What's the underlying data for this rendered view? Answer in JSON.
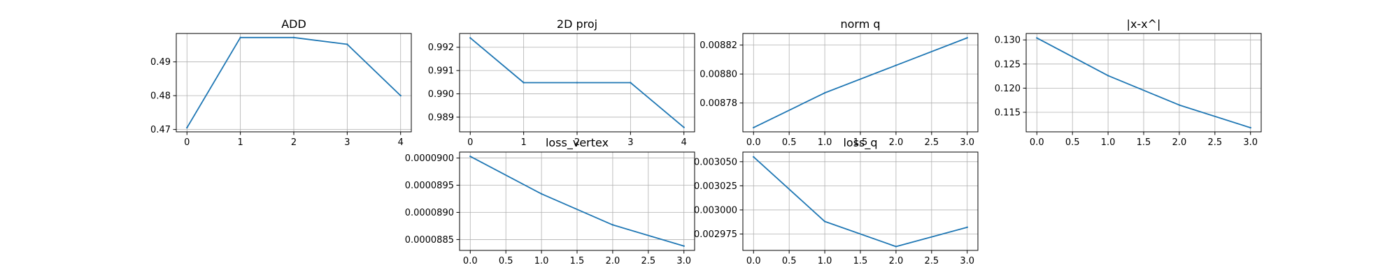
{
  "line_color": "#1f77b4",
  "grid_color": "#b0b0b0",
  "chart_data": [
    {
      "id": "add",
      "type": "line",
      "title": "ADD",
      "x": [
        0,
        1,
        2,
        3,
        4
      ],
      "y": [
        0.4705,
        0.4972,
        0.4972,
        0.4952,
        0.48
      ],
      "xlim": [
        -0.2,
        4.2
      ],
      "ylim": [
        0.4693,
        0.4984
      ],
      "xticks": [
        0,
        1,
        2,
        3,
        4
      ],
      "xtick_labels": [
        "0",
        "1",
        "2",
        "3",
        "4"
      ],
      "yticks": [
        0.47,
        0.48,
        0.49
      ],
      "ytick_labels": [
        "0.47",
        "0.48",
        "0.49"
      ],
      "grid": true
    },
    {
      "id": "proj2d",
      "type": "line",
      "title": "2D proj",
      "x": [
        0,
        1,
        2,
        3,
        4
      ],
      "y": [
        0.9924,
        0.99048,
        0.99048,
        0.99048,
        0.98856
      ],
      "xlim": [
        -0.2,
        4.2
      ],
      "ylim": [
        0.98837,
        0.99259
      ],
      "xticks": [
        0,
        1,
        2,
        3,
        4
      ],
      "xtick_labels": [
        "0",
        "1",
        "2",
        "3",
        "4"
      ],
      "yticks": [
        0.989,
        0.99,
        0.991,
        0.992
      ],
      "ytick_labels": [
        "0.989",
        "0.990",
        "0.991",
        "0.992"
      ],
      "grid": true
    },
    {
      "id": "normq",
      "type": "line",
      "title": "norm q",
      "x": [
        0,
        1,
        2,
        3
      ],
      "y": [
        0.008763,
        0.008787,
        0.008806,
        0.008825
      ],
      "xlim": [
        -0.15,
        3.15
      ],
      "ylim": [
        0.0087601,
        0.008828
      ],
      "xticks": [
        0.0,
        0.5,
        1.0,
        1.5,
        2.0,
        2.5,
        3.0
      ],
      "xtick_labels": [
        "0.0",
        "0.5",
        "1.0",
        "1.5",
        "2.0",
        "2.5",
        "3.0"
      ],
      "yticks": [
        0.00878,
        0.0088,
        0.00882
      ],
      "ytick_labels": [
        "0.00878",
        "0.00880",
        "0.00882"
      ],
      "grid": true
    },
    {
      "id": "absdiff",
      "type": "line",
      "title": "|x-x^|",
      "x": [
        0,
        1,
        2,
        3
      ],
      "y": [
        0.1304,
        0.1226,
        0.1165,
        0.1118
      ],
      "xlim": [
        -0.15,
        3.15
      ],
      "ylim": [
        0.11095,
        0.13133
      ],
      "xticks": [
        0.0,
        0.5,
        1.0,
        1.5,
        2.0,
        2.5,
        3.0
      ],
      "xtick_labels": [
        "0.0",
        "0.5",
        "1.0",
        "1.5",
        "2.0",
        "2.5",
        "3.0"
      ],
      "yticks": [
        0.115,
        0.12,
        0.125,
        0.13
      ],
      "ytick_labels": [
        "0.115",
        "0.120",
        "0.125",
        "0.130"
      ],
      "grid": true
    },
    {
      "id": "lossvertex",
      "type": "line",
      "title": "loss_vertex",
      "x": [
        0,
        1,
        2,
        3
      ],
      "y": [
        9.003e-05,
        8.934e-05,
        8.877e-05,
        8.838e-05
      ],
      "xlim": [
        -0.15,
        3.15
      ],
      "ylim": [
        8.83e-05,
        9.011e-05
      ],
      "xticks": [
        0.0,
        0.5,
        1.0,
        1.5,
        2.0,
        2.5,
        3.0
      ],
      "xtick_labels": [
        "0.0",
        "0.5",
        "1.0",
        "1.5",
        "2.0",
        "2.5",
        "3.0"
      ],
      "yticks": [
        8.85e-05,
        8.9e-05,
        8.95e-05,
        9e-05
      ],
      "ytick_labels": [
        "0.0000885",
        "0.0000890",
        "0.0000895",
        "0.0000900"
      ],
      "grid": true
    },
    {
      "id": "lossq",
      "type": "line",
      "title": "loss_q",
      "x": [
        0,
        1,
        2,
        3
      ],
      "y": [
        0.003055,
        0.002988,
        0.002962,
        0.002982
      ],
      "xlim": [
        -0.15,
        3.15
      ],
      "ylim": [
        0.002958,
        0.00306
      ],
      "xticks": [
        0.0,
        0.5,
        1.0,
        1.5,
        2.0,
        2.5,
        3.0
      ],
      "xtick_labels": [
        "0.0",
        "0.5",
        "1.0",
        "1.5",
        "2.0",
        "2.5",
        "3.0"
      ],
      "yticks": [
        0.002975,
        0.003,
        0.003025,
        0.00305
      ],
      "ytick_labels": [
        "0.002975",
        "0.003000",
        "0.003025",
        "0.003050"
      ],
      "grid": true
    }
  ]
}
